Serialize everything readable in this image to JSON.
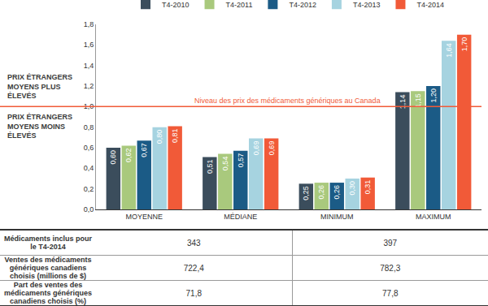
{
  "chart_data": {
    "type": "bar",
    "categories": [
      "MOYENNE",
      "MÉDIANE",
      "MINIMUM",
      "MAXIMUM"
    ],
    "series": [
      {
        "name": "T4-2010",
        "color": "#3b4d5c",
        "values": [
          0.6,
          0.51,
          0.25,
          1.14
        ],
        "value_labels": [
          "0,60",
          "0,51",
          "0,25",
          "1,14"
        ]
      },
      {
        "name": "T4-2011",
        "color": "#a9c97d",
        "values": [
          0.62,
          0.54,
          0.26,
          1.15
        ],
        "value_labels": [
          "0,62",
          "0,54",
          "0,26",
          "1,15"
        ]
      },
      {
        "name": "T4-2012",
        "color": "#1b5b86",
        "values": [
          0.67,
          0.57,
          0.26,
          1.2
        ],
        "value_labels": [
          "0,67",
          "0,57",
          "0,26",
          "1,20"
        ]
      },
      {
        "name": "T4-2013",
        "color": "#a6d3e0",
        "values": [
          0.8,
          0.69,
          0.3,
          1.64
        ],
        "value_labels": [
          "0,80",
          "0,69",
          "0,30",
          "1,64"
        ]
      },
      {
        "name": "T4-2014",
        "color": "#f15a38",
        "values": [
          0.81,
          0.69,
          0.31,
          1.7
        ],
        "value_labels": [
          "0,81",
          "0,69",
          "0,31",
          "1,70"
        ]
      }
    ],
    "ylim": [
      0,
      1.8
    ],
    "yticks": [
      {
        "value": 0,
        "label": "0,0"
      },
      {
        "value": 0.2,
        "label": "0,2"
      },
      {
        "value": 0.4,
        "label": "0,4"
      },
      {
        "value": 0.6,
        "label": "0,6"
      },
      {
        "value": 0.8,
        "label": "0,8"
      },
      {
        "value": 1.0,
        "label": "1,0"
      },
      {
        "value": 1.2,
        "label": "1,2"
      },
      {
        "value": 1.4,
        "label": "1,4"
      },
      {
        "value": 1.6,
        "label": "1,6"
      },
      {
        "value": 1.8,
        "label": "1,8"
      }
    ],
    "grid": false,
    "legend": "top",
    "data_labels": true,
    "reference_line": {
      "value": 1.0,
      "label": "Niveau des prix des médicaments génériques au Canada",
      "color": "#f15a38"
    },
    "annotations": [
      "PRIX ÉTRANGERS MOYENS PLUS ÉLEVÉS",
      "PRIX ÉTRANGERS MOYENS MOINS ÉLEVÉS"
    ]
  },
  "table": {
    "rows": [
      [
        "Médicaments inclus pour le T4-2014",
        "343",
        "397"
      ],
      [
        "Ventes des médicaments génériques canadiens choisis (millions de $)",
        "722,4",
        "782,3"
      ],
      [
        "Part des ventes des médicaments génériques canadiens choisis (%)",
        "71,8",
        "77,8"
      ]
    ]
  }
}
